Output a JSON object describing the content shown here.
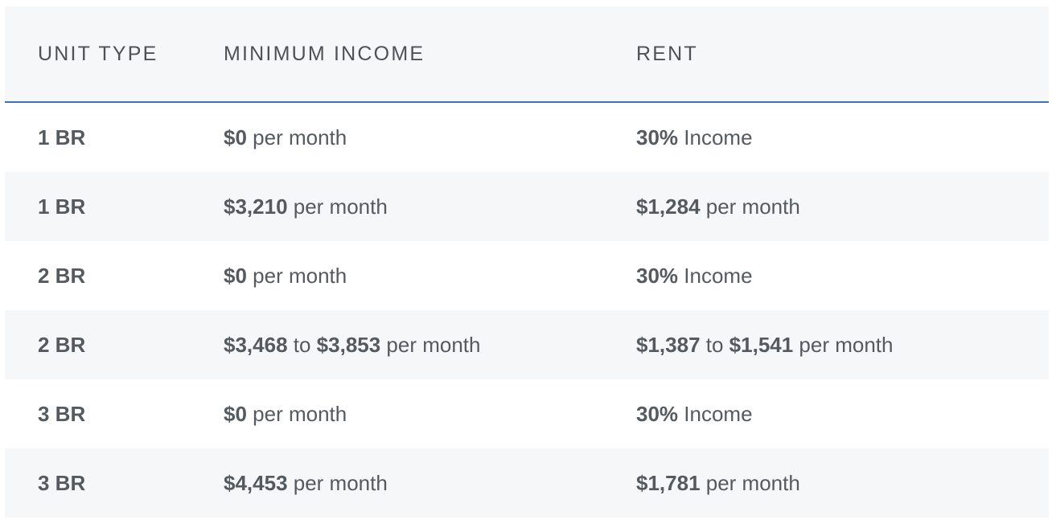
{
  "table": {
    "headers": {
      "unit_type": "UNIT TYPE",
      "minimum_income": "MINIMUM INCOME",
      "rent": "RENT"
    },
    "rows": [
      {
        "unit": "1 BR",
        "income": {
          "bold1": "$0",
          "mid": "",
          "bold2": "",
          "suffix": " per month"
        },
        "rent": {
          "bold1": "30%",
          "mid": "",
          "bold2": "",
          "suffix": " Income"
        }
      },
      {
        "unit": "1 BR",
        "income": {
          "bold1": "$3,210",
          "mid": "",
          "bold2": "",
          "suffix": " per month"
        },
        "rent": {
          "bold1": "$1,284",
          "mid": "",
          "bold2": "",
          "suffix": " per month"
        }
      },
      {
        "unit": "2 BR",
        "income": {
          "bold1": "$0",
          "mid": "",
          "bold2": "",
          "suffix": " per month"
        },
        "rent": {
          "bold1": "30%",
          "mid": "",
          "bold2": "",
          "suffix": " Income"
        }
      },
      {
        "unit": "2 BR",
        "income": {
          "bold1": "$3,468",
          "mid": " to ",
          "bold2": "$3,853",
          "suffix": " per month"
        },
        "rent": {
          "bold1": "$1,387",
          "mid": " to ",
          "bold2": "$1,541",
          "suffix": " per month"
        }
      },
      {
        "unit": "3 BR",
        "income": {
          "bold1": "$0",
          "mid": "",
          "bold2": "",
          "suffix": " per month"
        },
        "rent": {
          "bold1": "30%",
          "mid": "",
          "bold2": "",
          "suffix": " Income"
        }
      },
      {
        "unit": "3 BR",
        "income": {
          "bold1": "$4,453",
          "mid": "",
          "bold2": "",
          "suffix": " per month"
        },
        "rent": {
          "bold1": "$1,781",
          "mid": "",
          "bold2": "",
          "suffix": " per month"
        }
      }
    ]
  },
  "colors": {
    "header_bg": "#f6f7f8",
    "header_border": "#3b73b9",
    "alt_row_bg": "#f6f7f8",
    "text": "#555a5f"
  }
}
